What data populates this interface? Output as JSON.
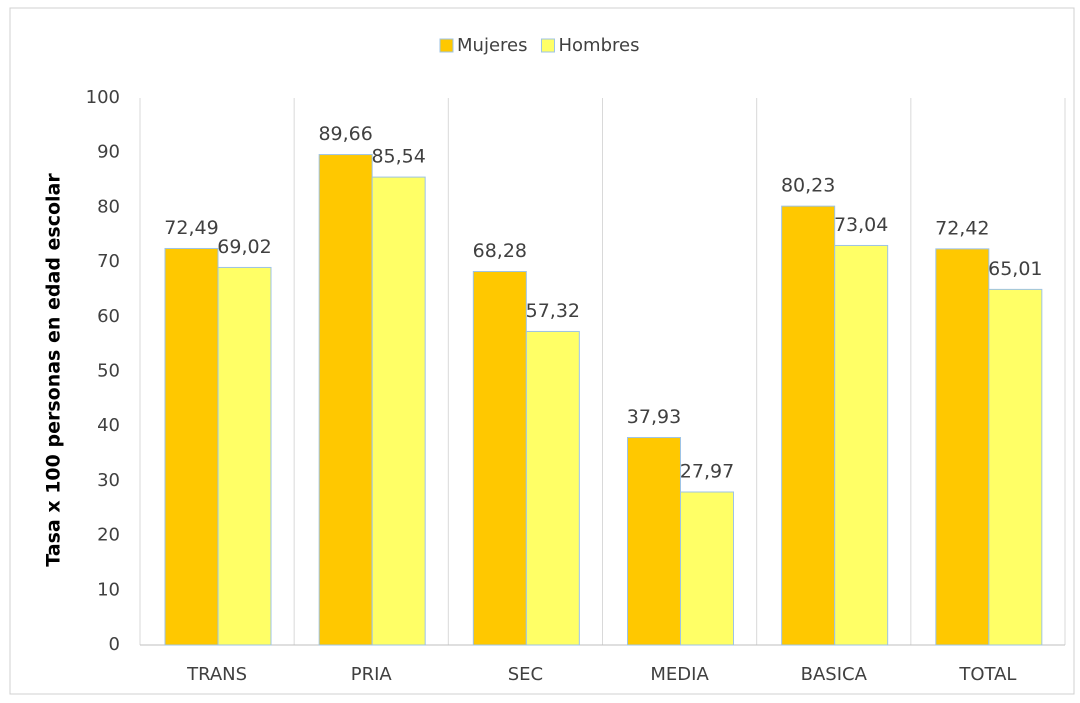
{
  "chart_data": {
    "type": "bar",
    "y_label": "Tasa x 100 personas en edad escolar",
    "categories": [
      "TRANS",
      "PRIA",
      "SEC",
      "MEDIA",
      "BASICA",
      "TOTAL"
    ],
    "series": [
      {
        "name": "Mujeres",
        "color": "#ffc800",
        "values": [
          72.49,
          89.66,
          68.28,
          37.93,
          80.23,
          72.42
        ],
        "value_labels": [
          "72,49",
          "89,66",
          "68,28",
          "37,93",
          "80,23",
          "72,42"
        ]
      },
      {
        "name": "Hombres",
        "color": "#ffff66",
        "values": [
          69.02,
          85.54,
          57.32,
          27.97,
          73.04,
          65.01
        ],
        "value_labels": [
          "69,02",
          "85,54",
          "57,32",
          "27,97",
          "73,04",
          "65,01"
        ]
      }
    ],
    "ylim": [
      0,
      100
    ],
    "yticks": [
      0,
      10,
      20,
      30,
      40,
      50,
      60,
      70,
      80,
      90,
      100
    ],
    "grid": true,
    "legend": "top"
  }
}
